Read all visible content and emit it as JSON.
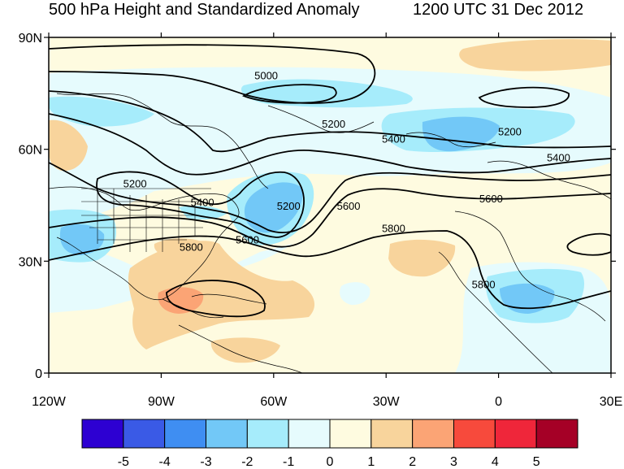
{
  "title": "500 hPa Height and Standardized Anomaly",
  "valid_time": "1200 UTC 31 Dec 2012",
  "axes": {
    "lon_ticks": [
      "120W",
      "90W",
      "60W",
      "30W",
      "0",
      "30E"
    ],
    "lat_ticks": [
      "90N",
      "60N",
      "30N",
      "0"
    ],
    "lon_range": [
      -120,
      30
    ],
    "lat_range": [
      0,
      90
    ]
  },
  "contour_labels": [
    {
      "text": "5000",
      "lon": -62,
      "lat": 79
    },
    {
      "text": "5200",
      "lon": -44,
      "lat": 66
    },
    {
      "text": "5200",
      "lon": 3,
      "lat": 64
    },
    {
      "text": "5400",
      "lon": -28,
      "lat": 62
    },
    {
      "text": "5400",
      "lon": 16,
      "lat": 57
    },
    {
      "text": "5200",
      "lon": -97,
      "lat": 50
    },
    {
      "text": "5400",
      "lon": -79,
      "lat": 45
    },
    {
      "text": "5200",
      "lon": -56,
      "lat": 44
    },
    {
      "text": "5600",
      "lon": -40,
      "lat": 44
    },
    {
      "text": "5600",
      "lon": -2,
      "lat": 46
    },
    {
      "text": "5600",
      "lon": -67,
      "lat": 35
    },
    {
      "text": "5800",
      "lon": -82,
      "lat": 33
    },
    {
      "text": "5800",
      "lon": -28,
      "lat": 38
    },
    {
      "text": "5800",
      "lon": -4,
      "lat": 23
    }
  ],
  "colorbar": {
    "labels": [
      "-5",
      "-4",
      "-3",
      "-2",
      "-1",
      "0",
      "1",
      "2",
      "3",
      "4",
      "5"
    ],
    "colors": [
      "#2d00d2",
      "#3a5ae6",
      "#3f8ef2",
      "#72c8f7",
      "#a6ecfb",
      "#e6fbfd",
      "#fefbe0",
      "#f8d49c",
      "#fba475",
      "#f74a3c",
      "#ef263a",
      "#a50026"
    ]
  }
}
